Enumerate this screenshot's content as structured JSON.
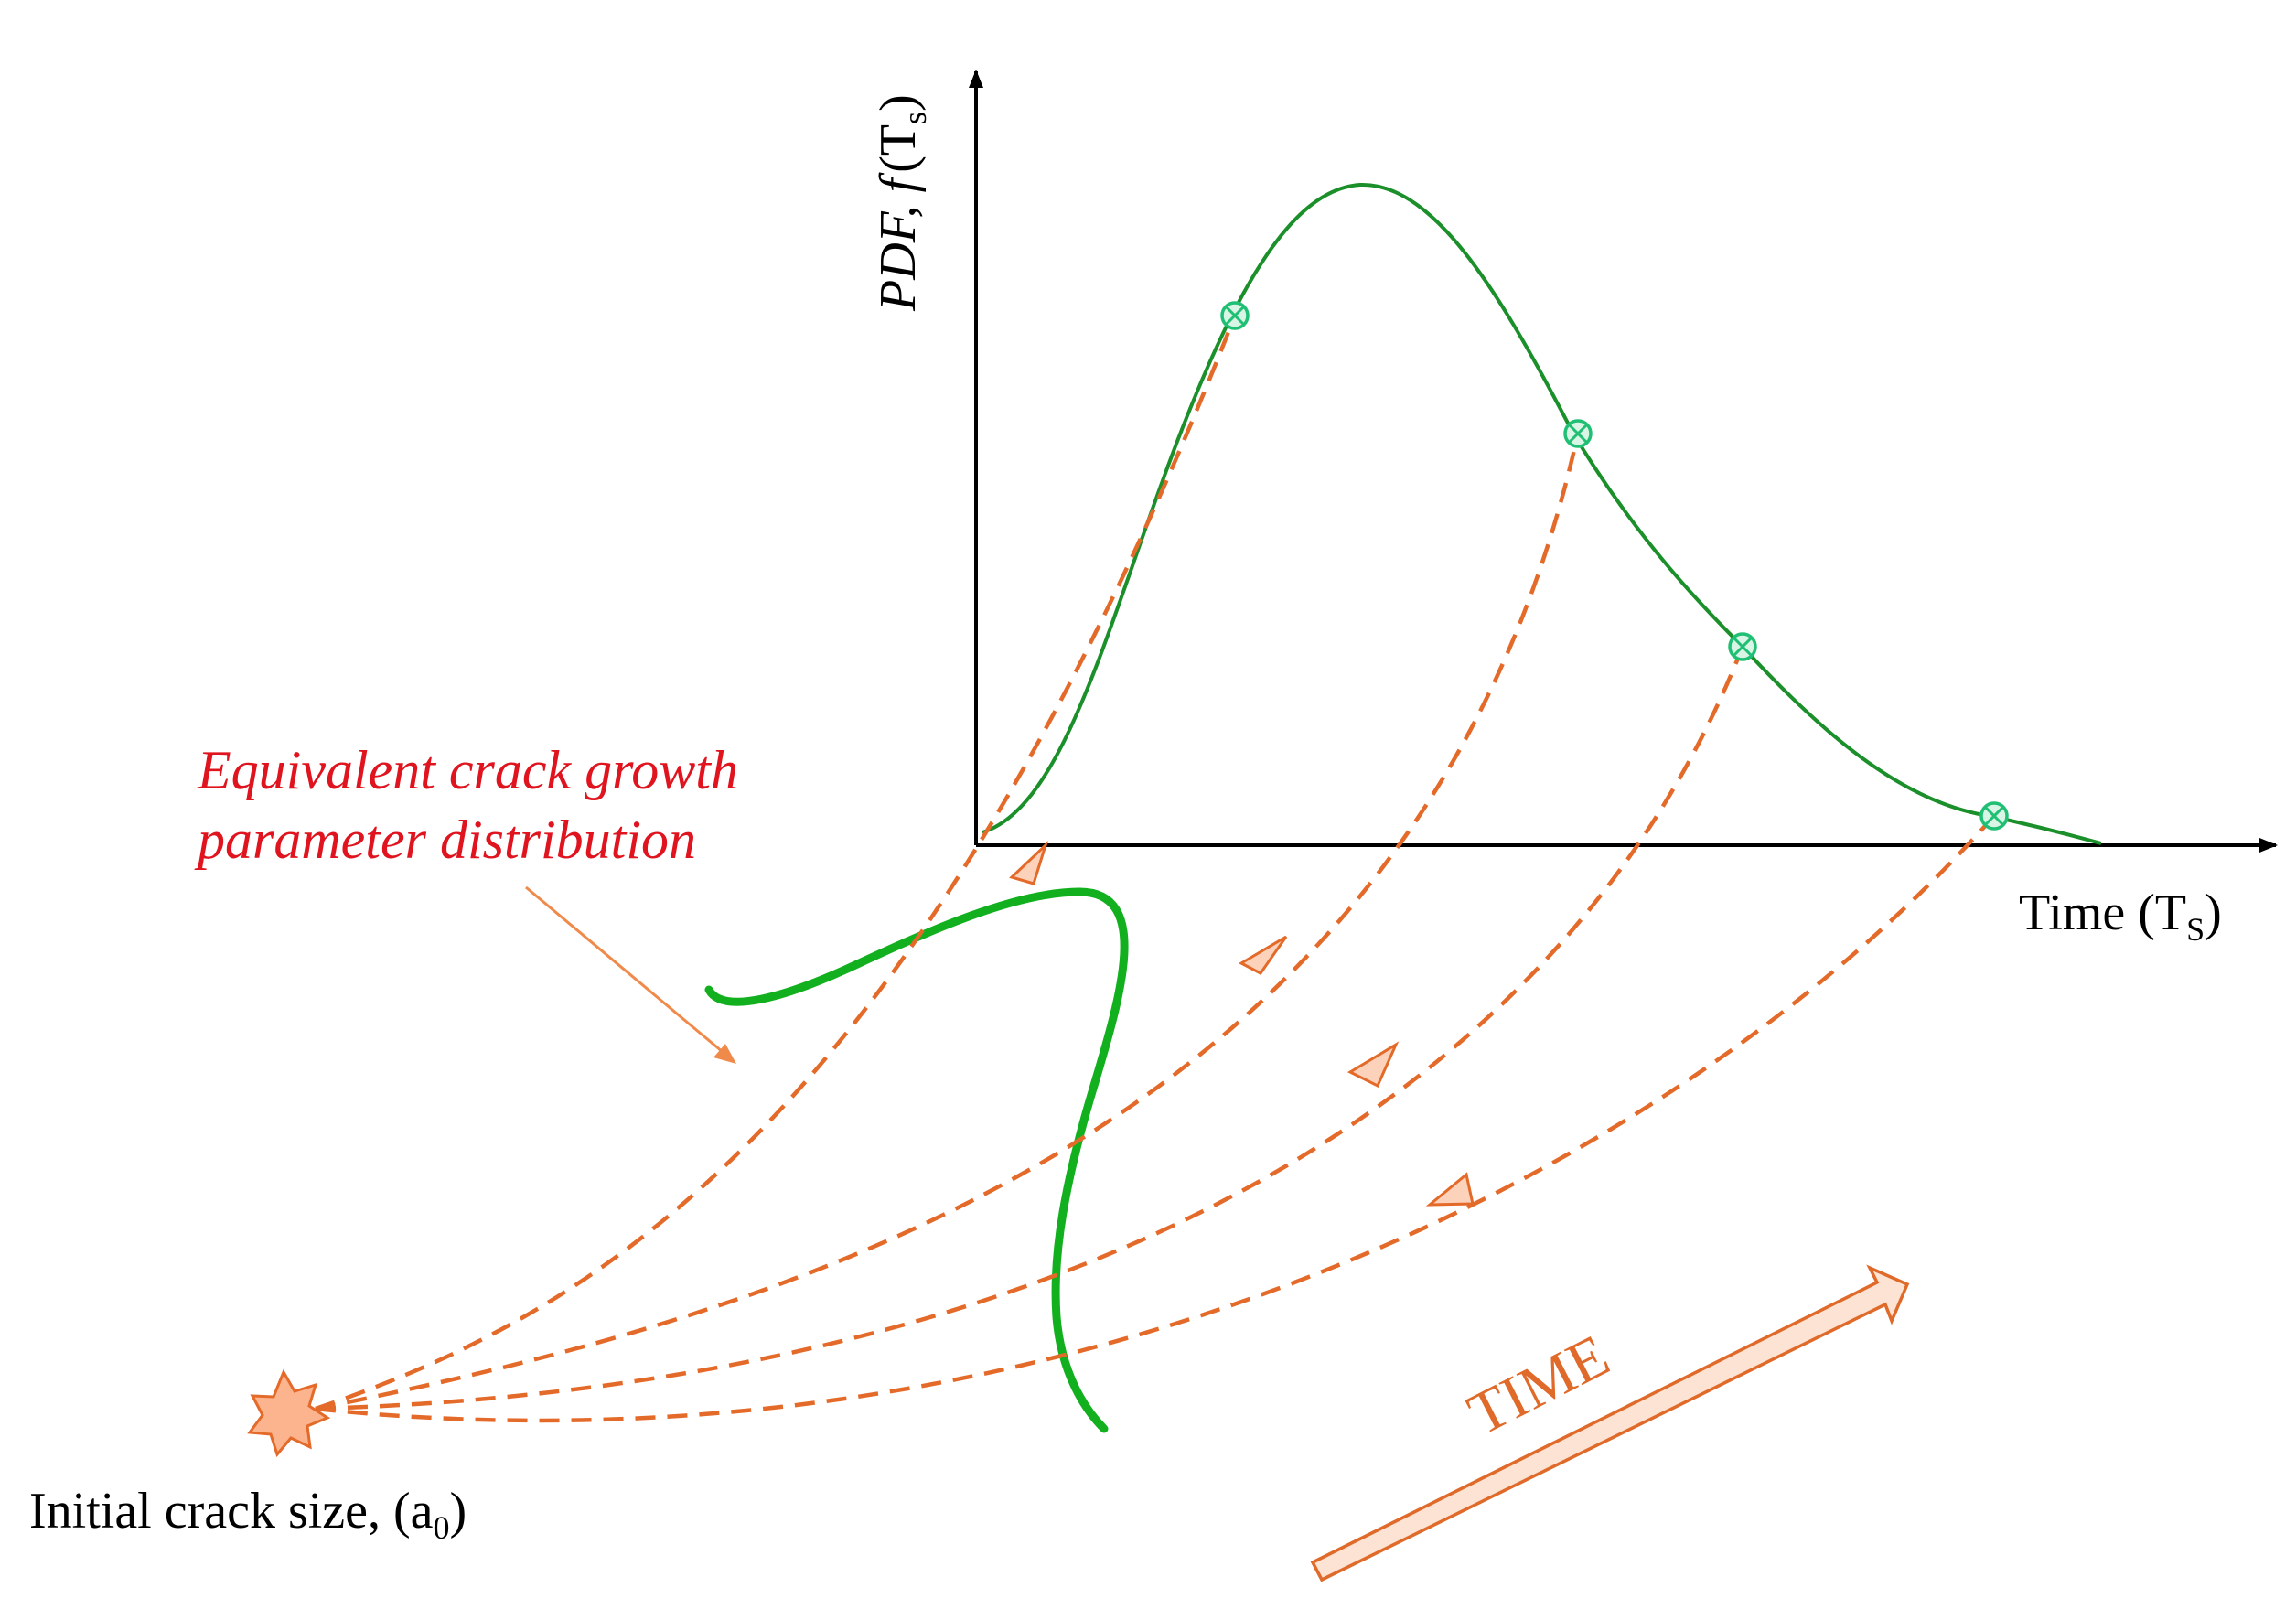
{
  "y_axis_label": {
    "italic_part": "PDF, f",
    "plain_part": "(T",
    "subscript": "s",
    "close": ")"
  },
  "x_axis_label": {
    "main": "Time (T",
    "subscript": "S",
    "close": ")"
  },
  "distribution_label": {
    "line1": "Equivalent crack growth",
    "line2": "parameter distribution",
    "color": "#e0141e"
  },
  "initial_crack_label": {
    "main": "Initial crack size, (a",
    "subscript": "0",
    "close": ")"
  },
  "time_arrow_label": {
    "text": "TIME",
    "color": "#e06a2a"
  },
  "colors": {
    "pdf_curve": "#1a8f2a",
    "distribution_curve": "#12b01e",
    "growth_paths": "#e46a2a",
    "markers": "#1fbf74"
  },
  "pdf_markers_count": 4,
  "growth_paths_count": 4
}
